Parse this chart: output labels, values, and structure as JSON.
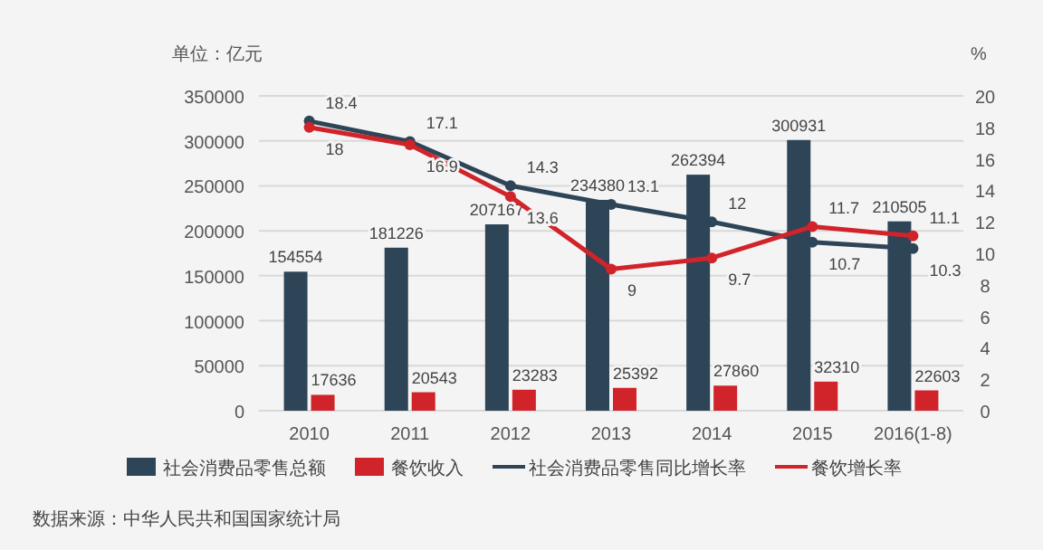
{
  "chart_data": {
    "type": "bar",
    "ylabel": "单位：亿元",
    "y2label": "%",
    "categories": [
      "2010",
      "2011",
      "2012",
      "2013",
      "2014",
      "2015",
      "2016(1-8)"
    ],
    "series": [
      {
        "name": "社会消费品零售总额",
        "color": "#2e4457",
        "values": [
          154554,
          181226,
          207167,
          234380,
          262394,
          300931,
          210505
        ]
      },
      {
        "name": "餐饮收入",
        "color": "#d1232a",
        "values": [
          17636,
          20543,
          23283,
          25392,
          27860,
          32310,
          22603
        ]
      },
      {
        "name": "社会消费品零售同比增长率",
        "type": "line",
        "axis": "y2",
        "color": "#2e4457",
        "values": [
          18.4,
          17.1,
          14.3,
          13.1,
          12,
          10.7,
          10.3
        ]
      },
      {
        "name": "餐饮增长率",
        "type": "line",
        "axis": "y2",
        "color": "#d1232a",
        "values": [
          18,
          16.9,
          13.6,
          9,
          9.7,
          11.7,
          11.1
        ]
      }
    ],
    "ylim": [
      0,
      350000
    ],
    "yticks": [
      0,
      50000,
      100000,
      150000,
      200000,
      250000,
      300000,
      350000
    ],
    "y2lim": [
      0,
      20
    ],
    "y2ticks": [
      0,
      2,
      4,
      6,
      8,
      10,
      12,
      14,
      16,
      18,
      20
    ],
    "grid": "y",
    "legend": "bottom",
    "marker": "circle",
    "line_style": "solid",
    "data_labels": true,
    "annotations": [
      "数据来源：中华人民共和国国家统计局"
    ]
  }
}
